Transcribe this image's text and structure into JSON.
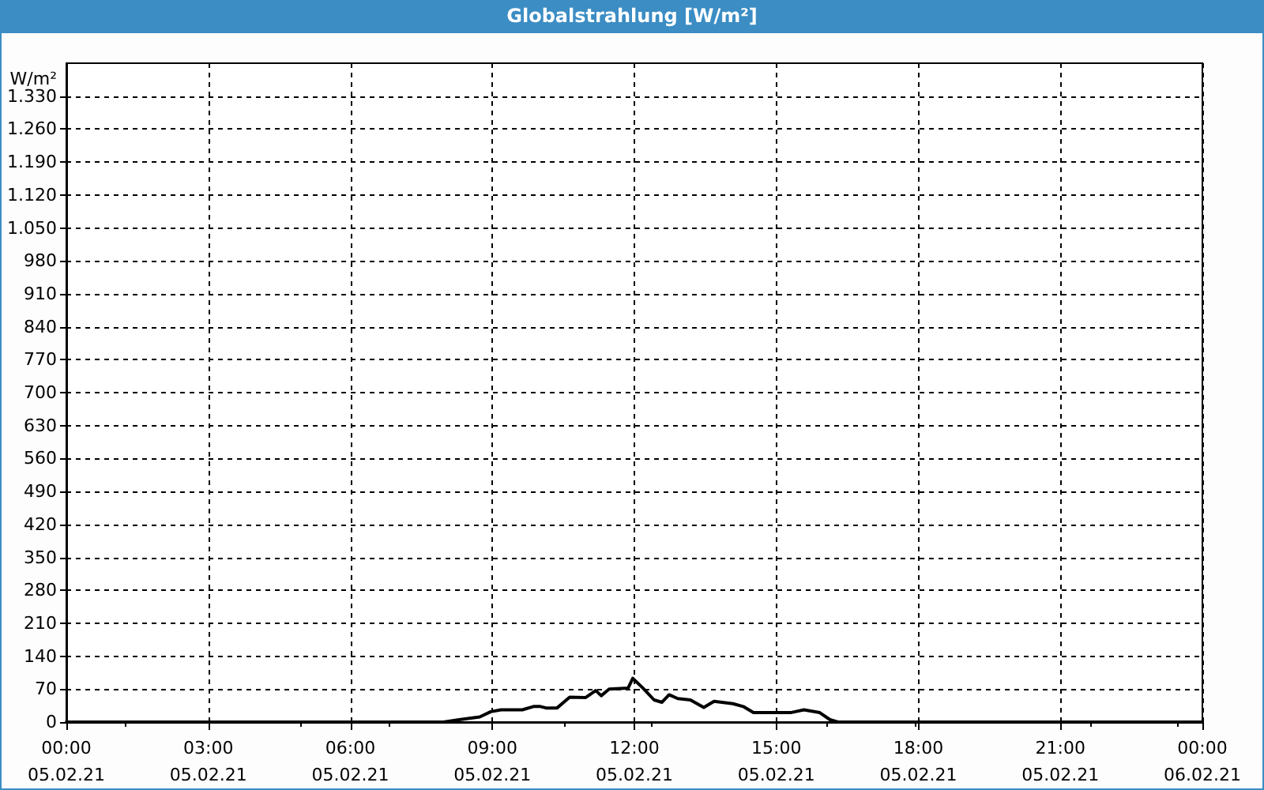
{
  "chart_data": {
    "type": "line",
    "title": "Globalstrahlung [W/m²]",
    "ylabel": "W/m²",
    "x": [
      "--02-05T00:00",
      "--02-05T07:18",
      "--02-05T07:58",
      "--02-05T08:18",
      "--02-05T08:44",
      "--02-05T08:58",
      "--02-05T09:11",
      "--02-05T09:38",
      "--02-05T09:52",
      "--02-05T10:01",
      "--02-05T10:08",
      "--02-05T10:22",
      "--02-05T10:38",
      "--02-05T10:58",
      "--02-05T11:11",
      "--02-05T11:18",
      "--02-05T11:28",
      "--02-05T11:52",
      "--02-05T11:58",
      "--02-05T12:11",
      "--02-05T12:25",
      "--02-05T12:35",
      "--02-05T12:44",
      "--02-05T12:55",
      "--02-05T13:11",
      "--02-05T13:28",
      "--02-05T13:41",
      "--02-05T14:05",
      "--02-05T14:18",
      "--02-05T14:31",
      "--02-05T15:18",
      "--02-05T15:35",
      "--02-05T15:55",
      "--02-05T16:08",
      "--02-05T16:18",
      "--02-06T00:00"
    ],
    "series": [
      {
        "color": "#000000",
        "values": [
          0,
          0,
          0,
          5,
          11,
          22,
          26,
          26,
          33,
          33,
          30,
          30,
          53,
          52,
          67,
          56,
          70,
          72,
          93,
          72,
          47,
          42,
          58,
          50,
          47,
          31,
          44,
          39,
          33,
          20,
          20,
          26,
          20,
          5,
          0,
          0
        ]
      }
    ],
    "xlim": [
      "--02-05T00:00",
      "--02-06T00:00"
    ],
    "xticks": [
      {
        "value": "--02-05T00:00",
        "label": "00:00\n05.02.21"
      },
      {
        "value": "--02-05T03:00",
        "label": "03:00\n05.02.21"
      },
      {
        "value": "--02-05T06:00",
        "label": "06:00\n05.02.21"
      },
      {
        "value": "--02-05T09:00",
        "label": "09:00\n05.02.21"
      },
      {
        "value": "--02-05T12:00",
        "label": "12:00\n05.02.21"
      },
      {
        "value": "--02-05T15:00",
        "label": "15:00\n05.02.21"
      },
      {
        "value": "--02-05T18:00",
        "label": "18:00\n05.02.21"
      },
      {
        "value": "--02-05T21:00",
        "label": "21:00\n05.02.21"
      },
      {
        "value": "--02-06T00:00",
        "label": "00:00\n06.02.21"
      }
    ],
    "ylim": [
      0,
      1400
    ],
    "yticks": [
      0,
      70,
      140,
      210,
      280,
      350,
      420,
      490,
      560,
      630,
      700,
      770,
      840,
      910,
      980,
      {
        "value": 1050,
        "label": "1.050"
      },
      {
        "value": 1120,
        "label": "1.120"
      },
      {
        "value": 1190,
        "label": "1.190"
      },
      {
        "value": 1260,
        "label": "1.260"
      },
      {
        "value": 1330,
        "label": "1.330"
      }
    ],
    "grid": true,
    "marker": "none",
    "line_style": "solid"
  }
}
